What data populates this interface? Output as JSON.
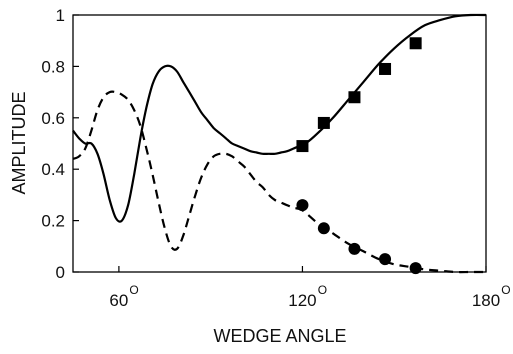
{
  "chart_data": {
    "type": "line",
    "title": "",
    "xlabel": "WEDGE ANGLE",
    "ylabel": "AMPLITUDE",
    "xlim": [
      45,
      180
    ],
    "ylim": [
      0,
      1
    ],
    "grid": false,
    "legend": "none",
    "x_ticks": [
      {
        "value": 60,
        "label": "60",
        "suffix": "O"
      },
      {
        "value": 120,
        "label": "120",
        "suffix": "O"
      },
      {
        "value": 180,
        "label": "180",
        "suffix": "O"
      }
    ],
    "y_ticks": [
      {
        "value": 0,
        "label": "0"
      },
      {
        "value": 0.2,
        "label": "0.2"
      },
      {
        "value": 0.4,
        "label": "0.4"
      },
      {
        "value": 0.6,
        "label": "0.6"
      },
      {
        "value": 0.8,
        "label": "0.8"
      },
      {
        "value": 1,
        "label": "1"
      }
    ],
    "series": [
      {
        "style": "solid",
        "color": "#000000",
        "x": [
          45,
          47,
          49,
          51,
          53,
          55,
          57,
          59,
          61,
          63,
          65,
          67,
          69,
          71,
          73,
          75,
          77,
          79,
          81,
          83,
          85,
          87,
          89,
          91,
          93,
          95,
          97,
          99,
          101,
          103,
          105,
          107,
          109,
          111,
          113,
          115,
          117,
          119,
          121,
          125,
          130,
          135,
          140,
          145,
          150,
          155,
          160,
          165,
          170,
          175,
          180
        ],
        "y": [
          0.55,
          0.52,
          0.5,
          0.5,
          0.46,
          0.38,
          0.28,
          0.21,
          0.2,
          0.26,
          0.38,
          0.52,
          0.64,
          0.73,
          0.78,
          0.8,
          0.8,
          0.78,
          0.74,
          0.7,
          0.66,
          0.62,
          0.59,
          0.56,
          0.54,
          0.52,
          0.5,
          0.49,
          0.48,
          0.47,
          0.465,
          0.46,
          0.46,
          0.46,
          0.465,
          0.47,
          0.48,
          0.49,
          0.5,
          0.54,
          0.6,
          0.67,
          0.74,
          0.81,
          0.87,
          0.92,
          0.96,
          0.98,
          0.995,
          1.0,
          1.0
        ]
      },
      {
        "style": "dashed",
        "color": "#000000",
        "x": [
          45,
          47,
          49,
          51,
          53,
          55,
          57,
          59,
          61,
          63,
          65,
          67,
          69,
          71,
          73,
          75,
          77,
          79,
          81,
          83,
          85,
          87,
          89,
          91,
          93,
          95,
          97,
          99,
          101,
          103,
          105,
          107,
          109,
          111,
          113,
          115,
          117,
          120,
          125,
          130,
          135,
          140,
          145,
          150,
          155,
          160,
          165,
          170,
          175,
          180
        ],
        "y": [
          0.44,
          0.45,
          0.48,
          0.55,
          0.63,
          0.68,
          0.7,
          0.7,
          0.69,
          0.67,
          0.63,
          0.57,
          0.48,
          0.38,
          0.27,
          0.17,
          0.1,
          0.09,
          0.14,
          0.22,
          0.3,
          0.37,
          0.42,
          0.45,
          0.46,
          0.46,
          0.45,
          0.43,
          0.41,
          0.38,
          0.35,
          0.33,
          0.3,
          0.28,
          0.27,
          0.26,
          0.25,
          0.24,
          0.19,
          0.15,
          0.11,
          0.08,
          0.05,
          0.03,
          0.02,
          0.01,
          0.005,
          0.0,
          0.0,
          0.0
        ]
      }
    ],
    "markers": [
      {
        "shape": "square",
        "x": [
          120,
          127,
          137,
          147,
          157
        ],
        "y": [
          0.49,
          0.58,
          0.68,
          0.79,
          0.89
        ]
      },
      {
        "shape": "circle",
        "x": [
          120,
          127,
          137,
          147,
          157
        ],
        "y": [
          0.26,
          0.17,
          0.09,
          0.05,
          0.015
        ]
      }
    ]
  }
}
